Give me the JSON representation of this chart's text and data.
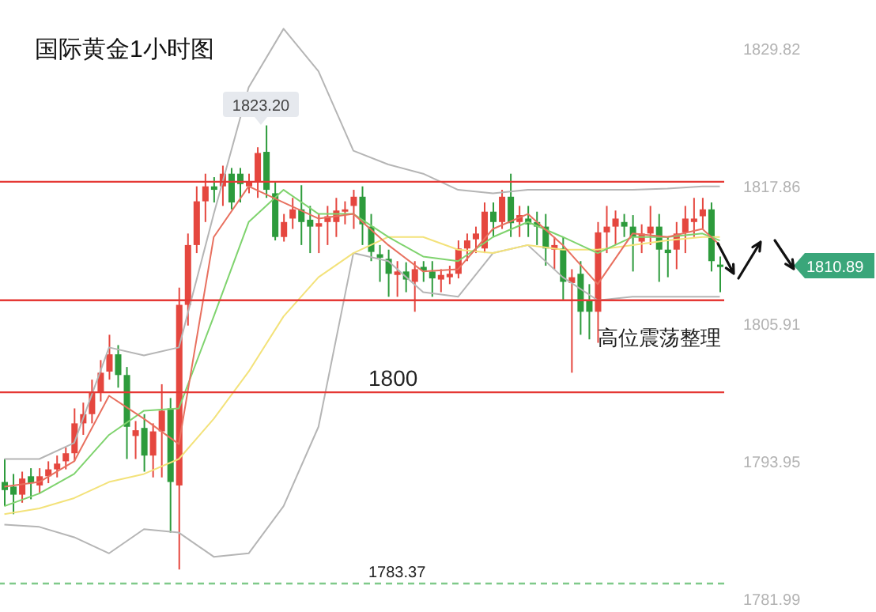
{
  "chart_data": {
    "type": "candlestick",
    "title": "国际黄金1小时图",
    "categories": [
      null,
      null,
      null,
      null,
      null,
      null,
      null,
      null,
      null,
      null,
      null,
      null,
      null,
      null,
      null,
      null,
      null,
      null,
      null,
      null,
      null,
      null,
      null,
      null,
      null,
      null,
      null,
      null,
      null,
      null,
      null,
      null,
      null,
      null,
      null,
      null,
      null,
      null,
      null,
      null,
      null,
      null,
      null,
      null,
      null,
      null,
      null,
      null,
      null,
      null,
      null,
      null,
      null,
      null,
      null,
      null,
      null,
      null,
      null,
      null,
      null,
      null,
      null,
      null,
      null,
      null,
      null,
      null,
      null,
      null,
      null,
      null,
      null,
      null,
      null,
      null,
      null,
      null,
      null,
      null,
      null,
      null,
      null
    ],
    "ohlc": [
      [
        1792.2,
        1794.2,
        1790.1,
        1791.5
      ],
      [
        1791.8,
        1792.9,
        1789.4,
        1791.1
      ],
      [
        1791.1,
        1793.1,
        1790.4,
        1792.5
      ],
      [
        1792.7,
        1793.4,
        1790.7,
        1792.1
      ],
      [
        1791.9,
        1793.4,
        1791.2,
        1792.7
      ],
      [
        1792.7,
        1794.0,
        1792.1,
        1793.3
      ],
      [
        1793.3,
        1794.5,
        1792.6,
        1793.8
      ],
      [
        1794.0,
        1795.2,
        1793.3,
        1794.7
      ],
      [
        1794.7,
        1798.6,
        1794.0,
        1797.3
      ],
      [
        1797.3,
        1799.1,
        1796.3,
        1798.1
      ],
      [
        1798.1,
        1801.1,
        1797.3,
        1800.0
      ],
      [
        1800.0,
        1802.8,
        1799.2,
        1801.7
      ],
      [
        1801.8,
        1805.0,
        1801.1,
        1803.3
      ],
      [
        1803.3,
        1804.1,
        1800.4,
        1801.5
      ],
      [
        1801.5,
        1802.2,
        1794.2,
        1797.0
      ],
      [
        1796.2,
        1797.5,
        1794.2,
        1796.7
      ],
      [
        1796.9,
        1798.1,
        1793.1,
        1794.5
      ],
      [
        1794.5,
        1797.3,
        1792.6,
        1796.6
      ],
      [
        1796.6,
        1800.7,
        1792.6,
        1798.4
      ],
      [
        1798.6,
        1799.5,
        1787.8,
        1792.2
      ],
      [
        1791.9,
        1809.1,
        1784.6,
        1807.6
      ],
      [
        1807.6,
        1813.8,
        1805.8,
        1812.8
      ],
      [
        1812.8,
        1817.9,
        1812.1,
        1816.6
      ],
      [
        1816.6,
        1819.0,
        1814.8,
        1817.9
      ],
      [
        1817.9,
        1818.7,
        1816.5,
        1817.6
      ],
      [
        1817.9,
        1819.7,
        1816.2,
        1819.0
      ],
      [
        1819.0,
        1819.5,
        1815.9,
        1816.5
      ],
      [
        1819.0,
        1819.5,
        1816.5,
        1818.1
      ],
      [
        1817.9,
        1819.0,
        1817.3,
        1818.3
      ],
      [
        1818.3,
        1821.3,
        1816.9,
        1820.8
      ],
      [
        1820.9,
        1823.2,
        1816.9,
        1817.6
      ],
      [
        1817.3,
        1818.3,
        1813.2,
        1813.5
      ],
      [
        1813.5,
        1815.5,
        1813.1,
        1814.8
      ],
      [
        1815.1,
        1816.9,
        1814.2,
        1815.9
      ],
      [
        1815.9,
        1818.0,
        1812.8,
        1814.8
      ],
      [
        1815.0,
        1816.2,
        1812.1,
        1814.4
      ],
      [
        1814.4,
        1815.5,
        1812.1,
        1814.7
      ],
      [
        1814.8,
        1816.2,
        1812.8,
        1815.3
      ],
      [
        1814.8,
        1816.9,
        1813.5,
        1815.8
      ],
      [
        1815.7,
        1816.6,
        1814.6,
        1815.9
      ],
      [
        1816.2,
        1817.6,
        1814.2,
        1817.0
      ],
      [
        1817.0,
        1817.9,
        1812.8,
        1814.6
      ],
      [
        1814.4,
        1815.5,
        1811.4,
        1812.2
      ],
      [
        1812.0,
        1812.8,
        1809.6,
        1811.7
      ],
      [
        1811.6,
        1812.4,
        1808.3,
        1810.3
      ],
      [
        1810.2,
        1811.4,
        1808.3,
        1810.5
      ],
      [
        1810.5,
        1811.3,
        1808.7,
        1809.8
      ],
      [
        1809.6,
        1811.4,
        1807.0,
        1810.7
      ],
      [
        1810.9,
        1811.4,
        1809.6,
        1810.6
      ],
      [
        1810.5,
        1811.4,
        1808.3,
        1809.9
      ],
      [
        1809.8,
        1810.7,
        1808.7,
        1810.2
      ],
      [
        1810.0,
        1811.0,
        1809.4,
        1810.3
      ],
      [
        1810.3,
        1813.2,
        1809.9,
        1812.5
      ],
      [
        1812.5,
        1813.8,
        1811.4,
        1813.2
      ],
      [
        1813.3,
        1814.4,
        1812.1,
        1813.8
      ],
      [
        1812.5,
        1816.5,
        1812.1,
        1815.7
      ],
      [
        1815.7,
        1816.5,
        1813.5,
        1814.8
      ],
      [
        1814.8,
        1817.6,
        1814.2,
        1817.0
      ],
      [
        1817.0,
        1819.0,
        1813.5,
        1814.7
      ],
      [
        1814.8,
        1816.2,
        1813.5,
        1815.4
      ],
      [
        1815.1,
        1816.2,
        1813.5,
        1814.6
      ],
      [
        1814.8,
        1815.7,
        1812.8,
        1814.4
      ],
      [
        1814.4,
        1815.5,
        1811.0,
        1812.5
      ],
      [
        1812.4,
        1813.5,
        1810.7,
        1812.8
      ],
      [
        1812.5,
        1813.5,
        1808.0,
        1809.6
      ],
      [
        1809.5,
        1810.7,
        1801.7,
        1810.0
      ],
      [
        1810.3,
        1811.4,
        1805.0,
        1807.0
      ],
      [
        1808.0,
        1809.4,
        1804.6,
        1807.0
      ],
      [
        1807.0,
        1814.8,
        1804.3,
        1813.9
      ],
      [
        1813.9,
        1816.2,
        1812.1,
        1814.4
      ],
      [
        1814.4,
        1815.8,
        1812.8,
        1815.1
      ],
      [
        1814.8,
        1815.5,
        1813.5,
        1814.4
      ],
      [
        1814.4,
        1815.4,
        1810.5,
        1813.5
      ],
      [
        1813.1,
        1814.6,
        1812.1,
        1813.8
      ],
      [
        1813.8,
        1816.2,
        1812.8,
        1814.4
      ],
      [
        1814.4,
        1815.5,
        1809.6,
        1812.4
      ],
      [
        1812.4,
        1813.5,
        1810.0,
        1812.1
      ],
      [
        1812.4,
        1814.8,
        1810.7,
        1813.8
      ],
      [
        1813.9,
        1816.2,
        1812.1,
        1815.1
      ],
      [
        1814.8,
        1816.9,
        1813.5,
        1815.1
      ],
      [
        1815.3,
        1816.9,
        1814.2,
        1815.9
      ],
      [
        1815.9,
        1816.5,
        1810.5,
        1811.4
      ],
      [
        1811.1,
        1811.8,
        1808.7,
        1810.89
      ]
    ],
    "colors": [
      "#2d9b3c",
      "#2d9b3c",
      "#e5473f",
      "#2d9b3c",
      "#e5473f",
      "#e5473f",
      "#e5473f",
      "#e5473f",
      "#e5473f",
      "#e5473f",
      "#e5473f",
      "#e5473f",
      "#e5473f",
      "#2d9b3c",
      "#2d9b3c",
      "#e5473f",
      "#2d9b3c",
      "#e5473f",
      "#e5473f",
      "#2d9b3c",
      "#e5473f",
      "#e5473f",
      "#e5473f",
      "#e5473f",
      "#2d9b3c",
      "#e5473f",
      "#2d9b3c",
      "#2d9b3c",
      "#e5473f",
      "#e5473f",
      "#2d9b3c",
      "#2d9b3c",
      "#e5473f",
      "#e5473f",
      "#2d9b3c",
      "#2d9b3c",
      "#e5473f",
      "#e5473f",
      "#e5473f",
      "#e5473f",
      "#e5473f",
      "#2d9b3c",
      "#2d9b3c",
      "#2d9b3c",
      "#2d9b3c",
      "#e5473f",
      "#2d9b3c",
      "#e5473f",
      "#2d9b3c",
      "#2d9b3c",
      "#e5473f",
      "#e5473f",
      "#e5473f",
      "#e5473f",
      "#e5473f",
      "#e5473f",
      "#2d9b3c",
      "#e5473f",
      "#2d9b3c",
      "#e5473f",
      "#2d9b3c",
      "#2d9b3c",
      "#2d9b3c",
      "#e5473f",
      "#2d9b3c",
      "#e5473f",
      "#2d9b3c",
      "#2d9b3c",
      "#e5473f",
      "#e5473f",
      "#e5473f",
      "#2d9b3c",
      "#2d9b3c",
      "#e5473f",
      "#e5473f",
      "#2d9b3c",
      "#2d9b3c",
      "#e5473f",
      "#e5473f",
      "#e5473f",
      "#e5473f",
      "#2d9b3c",
      "#2d9b3c"
    ],
    "series": [
      {
        "type": "line",
        "color": "#b5b5b5",
        "values": [
          1794.2,
          null,
          null,
          null,
          1794.2,
          null,
          null,
          null,
          1795.6,
          null,
          null,
          null,
          1803.9,
          null,
          null,
          null,
          1803.2,
          null,
          null,
          null,
          1803.9,
          null,
          null,
          null,
          1815.5,
          null,
          null,
          null,
          1826.5,
          null,
          null,
          null,
          1831.6,
          null,
          null,
          null,
          1827.9,
          null,
          null,
          null,
          1821.0,
          null,
          null,
          null,
          1819.8,
          null,
          null,
          null,
          1819.0,
          null,
          null,
          null,
          1817.6,
          null,
          null,
          null,
          1817.3,
          null,
          null,
          null,
          1817.6,
          null,
          null,
          null,
          1817.6,
          null,
          null,
          null,
          1817.6,
          null,
          null,
          null,
          1817.6,
          null,
          null,
          null,
          1817.7,
          null,
          null,
          null,
          1817.9,
          null,
          1817.9
        ]
      },
      {
        "type": "line",
        "color": "#b5b5b5",
        "values": [
          1788.5,
          null,
          null,
          null,
          1788.3,
          null,
          null,
          null,
          1787.4,
          null,
          null,
          null,
          1786.0,
          null,
          null,
          null,
          1788.1,
          null,
          null,
          null,
          1787.8,
          null,
          null,
          null,
          1785.7,
          null,
          null,
          null,
          1786.0,
          null,
          null,
          null,
          1790.1,
          null,
          null,
          null,
          1797.0,
          null,
          null,
          null,
          1812.1,
          null,
          null,
          null,
          1811.4,
          null,
          null,
          null,
          1808.7,
          null,
          null,
          null,
          1808.3,
          null,
          null,
          null,
          1812.1,
          null,
          null,
          null,
          1812.8,
          null,
          null,
          null,
          1810.0,
          null,
          null,
          null,
          1808.0,
          null,
          null,
          null,
          1808.3,
          null,
          null,
          null,
          1808.3,
          null,
          null,
          null,
          1808.3,
          null,
          1808.3
        ]
      },
      {
        "type": "line",
        "color": "#f3e27a",
        "values": [
          1789.4,
          null,
          null,
          null,
          1789.9,
          null,
          null,
          null,
          1790.8,
          null,
          null,
          null,
          1792.2,
          null,
          null,
          null,
          1792.9,
          null,
          null,
          null,
          1794.2,
          null,
          null,
          null,
          1797.7,
          null,
          null,
          null,
          1801.8,
          null,
          null,
          null,
          1806.6,
          null,
          null,
          null,
          1810.0,
          null,
          null,
          null,
          1812.1,
          null,
          null,
          null,
          1813.5,
          null,
          null,
          null,
          1813.5,
          null,
          null,
          null,
          1812.4,
          null,
          null,
          null,
          1812.1,
          null,
          null,
          null,
          1812.8,
          null,
          null,
          null,
          1812.4,
          null,
          null,
          null,
          1812.4,
          null,
          null,
          null,
          1812.8,
          null,
          null,
          null,
          1813.2,
          null,
          null,
          null,
          1813.5,
          null,
          1813.5
        ]
      },
      {
        "type": "line",
        "color": "#7fd36e",
        "values": [
          1790.1,
          null,
          null,
          null,
          1791.2,
          null,
          null,
          null,
          1792.9,
          null,
          null,
          null,
          1796.3,
          null,
          null,
          null,
          1798.4,
          null,
          null,
          null,
          1798.6,
          null,
          null,
          null,
          1806.6,
          null,
          null,
          null,
          1814.8,
          null,
          null,
          null,
          1817.6,
          null,
          null,
          null,
          1815.5,
          null,
          null,
          null,
          1815.5,
          null,
          null,
          null,
          1813.5,
          null,
          null,
          null,
          1811.8,
          null,
          null,
          null,
          1811.4,
          null,
          null,
          null,
          1813.5,
          null,
          null,
          null,
          1814.8,
          null,
          null,
          null,
          1813.5,
          null,
          null,
          null,
          1812.1,
          null,
          null,
          null,
          1813.5,
          null,
          null,
          null,
          1813.5,
          null,
          null,
          null,
          1813.8,
          null,
          1813.2
        ]
      },
      {
        "type": "line",
        "color": "#e8705f",
        "values": [
          1791.8,
          null,
          null,
          null,
          1792.2,
          null,
          null,
          null,
          1794.0,
          null,
          null,
          null,
          1799.7,
          null,
          null,
          null,
          1797.7,
          null,
          null,
          null,
          1795.5,
          null,
          null,
          null,
          1813.5,
          null,
          null,
          null,
          1817.9,
          null,
          null,
          null,
          1816.5,
          null,
          null,
          null,
          1815.1,
          null,
          null,
          null,
          1815.5,
          null,
          null,
          null,
          1812.8,
          null,
          null,
          null,
          1810.5,
          null,
          null,
          null,
          1810.7,
          null,
          null,
          null,
          1814.2,
          null,
          null,
          null,
          1815.5,
          null,
          null,
          null,
          1812.8,
          null,
          null,
          null,
          1809.4,
          null,
          null,
          null,
          1813.8,
          null,
          null,
          null,
          1813.5,
          null,
          null,
          null,
          1814.2,
          null,
          1812.8
        ]
      }
    ],
    "ylim": [
      1780.9,
      1834.1
    ],
    "yticks": [
      1829.82,
      1817.86,
      1805.91,
      1793.95,
      1781.99
    ],
    "tick_labels": "y",
    "ref_lines": [
      {
        "axis": "y",
        "value": 1818.3,
        "color": "#e53935"
      },
      {
        "axis": "y",
        "value": 1808.0,
        "color": "#e53935"
      },
      {
        "axis": "y",
        "value": 1800,
        "label": "1800",
        "color": "#e53935"
      },
      {
        "axis": "y",
        "value": 1783.37,
        "label": "1783.37",
        "color": "#7fc98a",
        "line_style": "dashed"
      }
    ],
    "annotations": [
      "1823.20",
      "1810.89",
      "高位震荡整理"
    ]
  }
}
